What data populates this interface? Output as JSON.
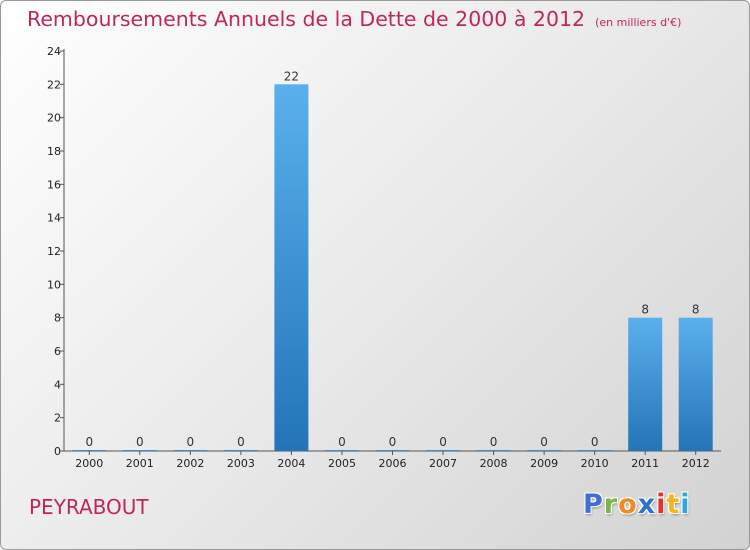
{
  "chart_data": {
    "type": "bar",
    "title": "Remboursements Annuels de la Dette de 2000 à 2012",
    "unit_note": "(en milliers d'€)",
    "categories": [
      "2000",
      "2001",
      "2002",
      "2003",
      "2004",
      "2005",
      "2006",
      "2007",
      "2008",
      "2009",
      "2010",
      "2011",
      "2012"
    ],
    "values": [
      0,
      0,
      0,
      0,
      22,
      0,
      0,
      0,
      0,
      0,
      0,
      8,
      8
    ],
    "data_labels": [
      "0",
      "0",
      "0",
      "0",
      "22",
      "0",
      "0",
      "0",
      "0",
      "0",
      "0",
      "8",
      "8"
    ],
    "ylim": [
      0,
      24
    ],
    "yticks": [
      0,
      2,
      4,
      6,
      8,
      10,
      12,
      14,
      16,
      18,
      20,
      22,
      24
    ],
    "bar_color": "#3a8fd6",
    "grid": false
  },
  "place_name": "PEYRABOUT",
  "logo": {
    "letters": [
      "P",
      "r",
      "o",
      "x",
      "i",
      "t",
      "i"
    ],
    "colors": [
      "#3f6fd0",
      "#7ab648",
      "#f08a24",
      "#2e73c9",
      "#e03030",
      "#f3b51d",
      "#2fa7d8"
    ]
  },
  "title_color": "#c1265a"
}
